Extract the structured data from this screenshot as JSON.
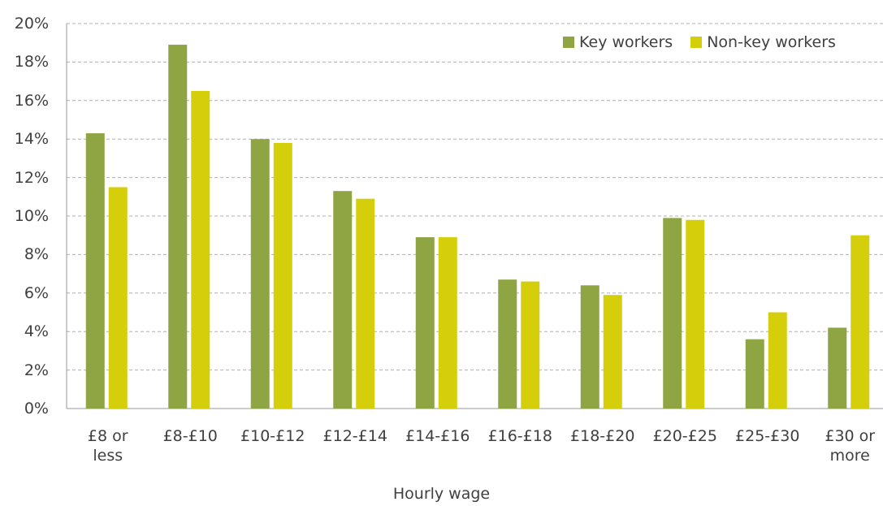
{
  "chart_data": {
    "type": "bar",
    "categories": [
      "£8 or less",
      "£8-£10",
      "£10-£12",
      "£12-£14",
      "£14-£16",
      "£16-£18",
      "£18-£20",
      "£20-£25",
      "£25-£30",
      "£30 or more"
    ],
    "series": [
      {
        "name": "Key workers",
        "color": "#8fa443",
        "values": [
          14.3,
          18.9,
          14.0,
          11.3,
          8.9,
          6.7,
          6.4,
          9.9,
          3.6,
          4.2
        ]
      },
      {
        "name": "Non-key workers",
        "color": "#d4cf0a",
        "values": [
          11.5,
          16.5,
          13.8,
          10.9,
          8.9,
          6.6,
          5.9,
          9.8,
          5.0,
          9.0
        ]
      }
    ],
    "x_label": "Hourly wage",
    "ylim": [
      0,
      20
    ],
    "yticks": [
      {
        "value": 0,
        "label": "0%"
      },
      {
        "value": 2,
        "label": "2%"
      },
      {
        "value": 4,
        "label": "4%"
      },
      {
        "value": 6,
        "label": "6%"
      },
      {
        "value": 8,
        "label": "8%"
      },
      {
        "value": 10,
        "label": "10%"
      },
      {
        "value": 12,
        "label": "12%"
      },
      {
        "value": 14,
        "label": "14%"
      },
      {
        "value": 16,
        "label": "16%"
      },
      {
        "value": 18,
        "label": "18%"
      },
      {
        "value": 20,
        "label": "20%"
      }
    ],
    "grid": true,
    "legend": "top-right"
  }
}
